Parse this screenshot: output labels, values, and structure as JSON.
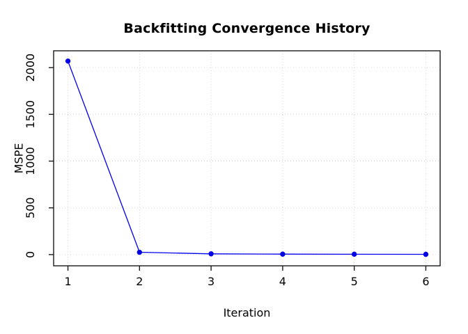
{
  "chart_data": {
    "type": "line",
    "title": "Backfitting Convergence History",
    "xlabel": "Iteration",
    "ylabel": "MSPE",
    "series_name": "MSPE",
    "x": [
      1,
      2,
      3,
      4,
      5,
      6
    ],
    "y": [
      2070,
      25,
      8,
      5,
      4,
      3
    ],
    "x_ticks": [
      1,
      2,
      3,
      4,
      5,
      6
    ],
    "y_ticks": [
      0,
      500,
      1000,
      1500,
      2000
    ],
    "x_range": [
      0.8,
      6.2
    ],
    "y_range": [
      -120,
      2180
    ],
    "grid": "dotted, both axes, at every tick",
    "legend": "none",
    "colors": {
      "line": "#0000EE",
      "point_fill": "#0000E0",
      "grid": "#D6D6D6",
      "axis": "#1A1A1A",
      "text": "#000000",
      "background": "#FFFFFF"
    }
  }
}
